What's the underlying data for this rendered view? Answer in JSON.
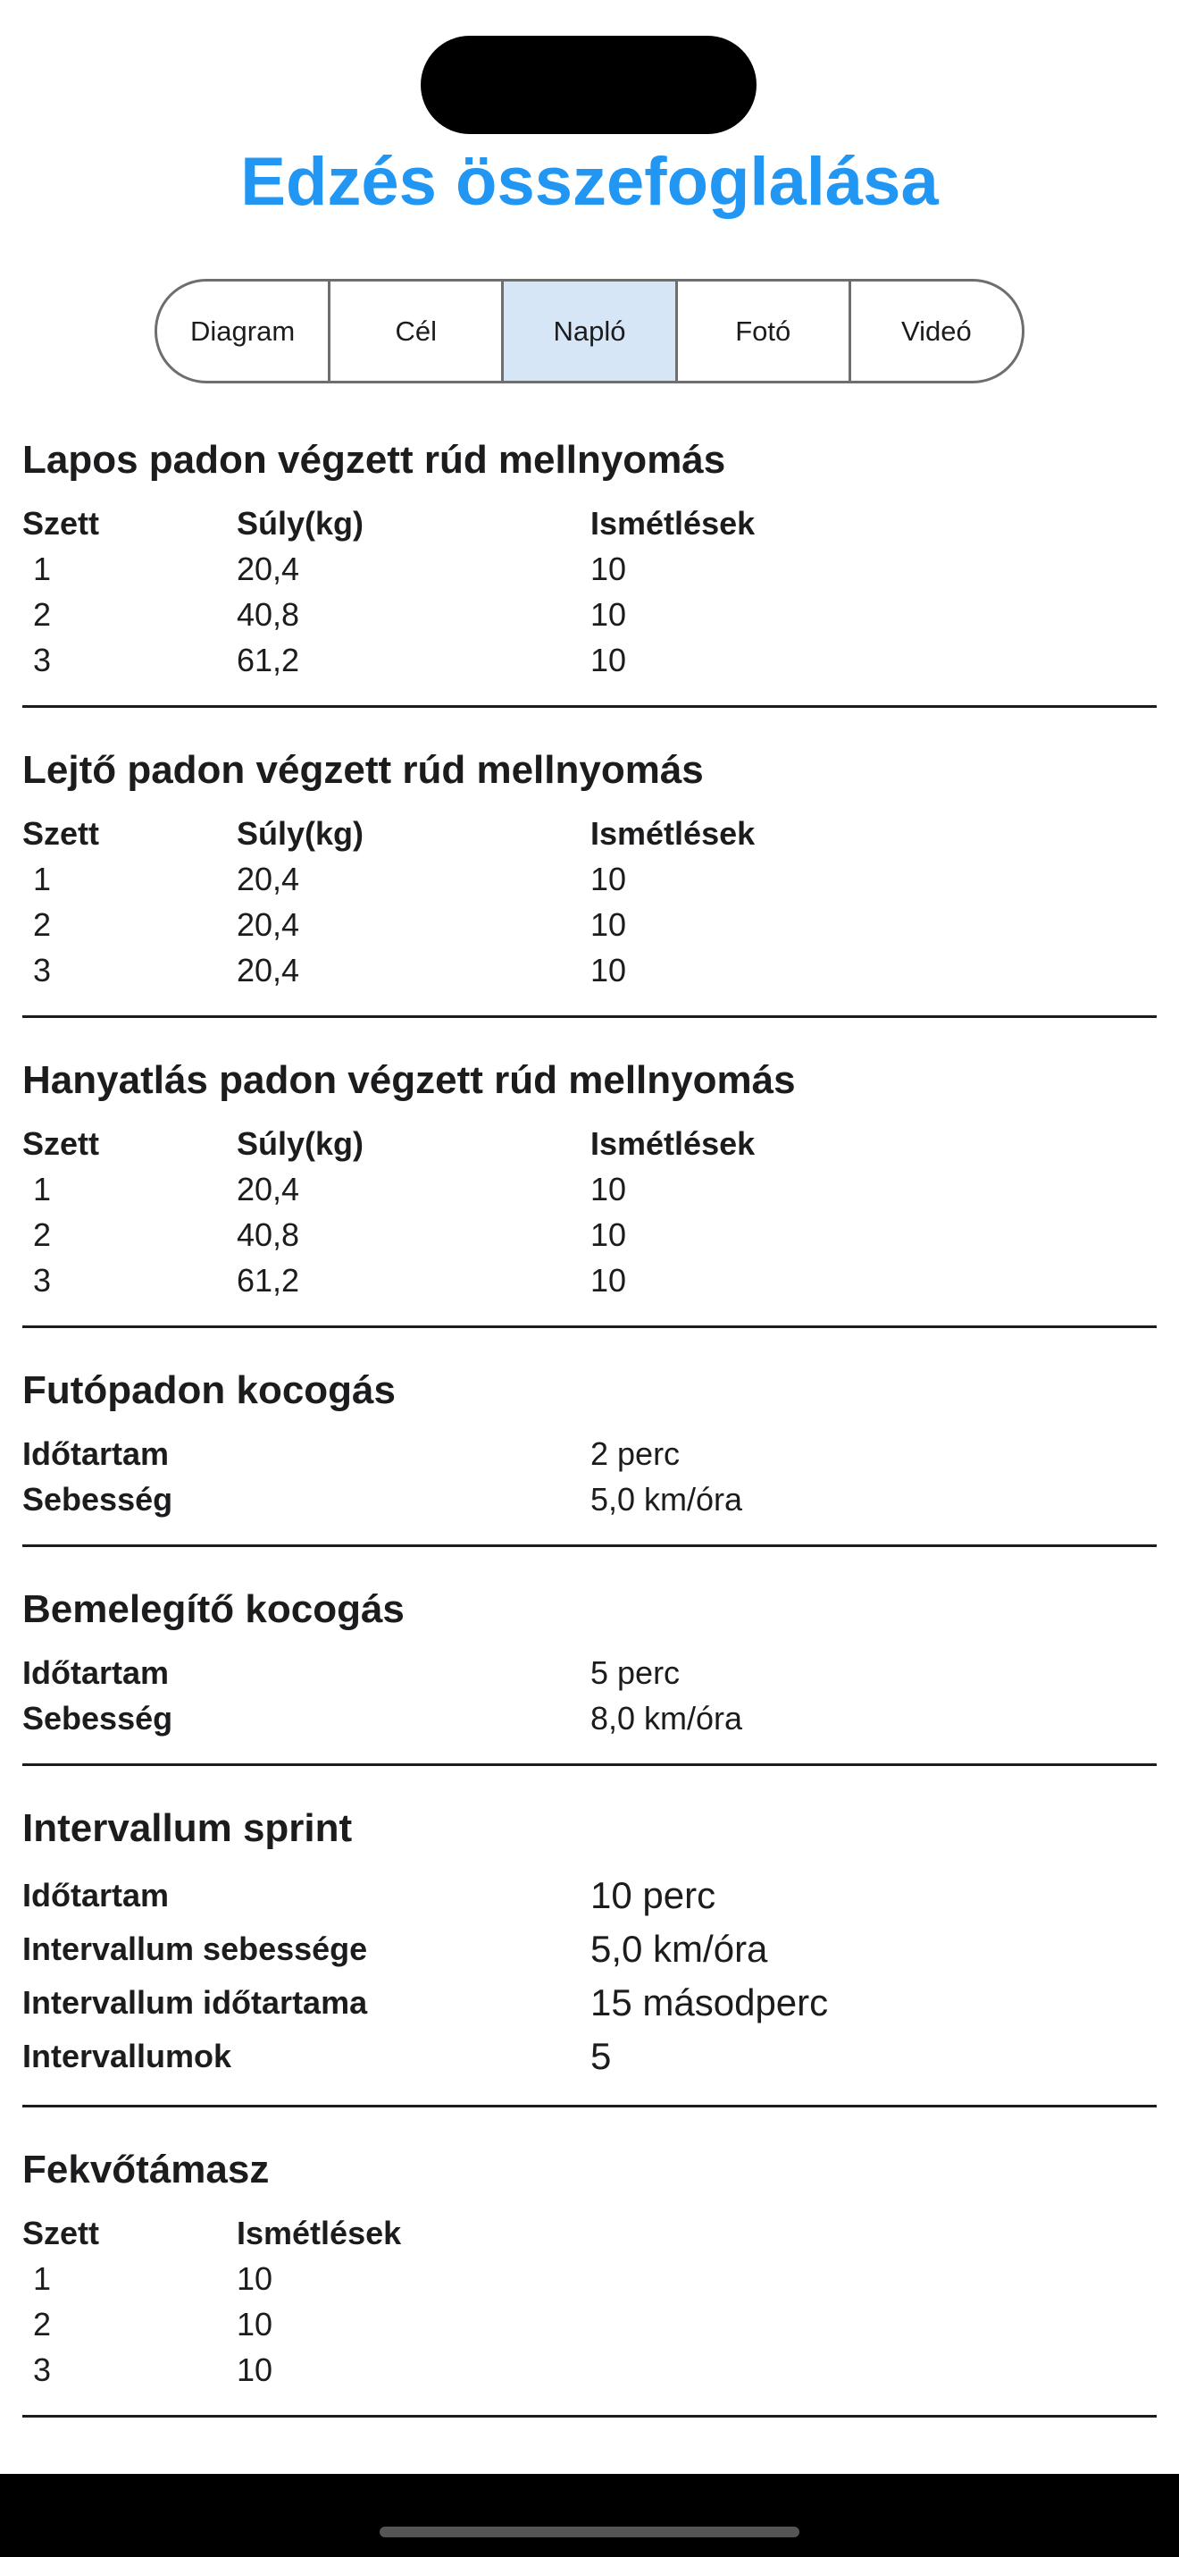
{
  "header": {
    "title": "Edzés összefoglalása"
  },
  "tabs": [
    "Diagram",
    "Cél",
    "Napló",
    "Fotó",
    "Videó"
  ],
  "selected_tab": 2,
  "sections": [
    {
      "title": "Lapos padon végzett rúd mellnyomás",
      "columns": [
        "Szett",
        "Súly(kg)",
        "Ismétlések"
      ],
      "rows": [
        [
          "1",
          "20,4",
          "10"
        ],
        [
          "2",
          "40,8",
          "10"
        ],
        [
          "3",
          "61,2",
          "10"
        ]
      ]
    },
    {
      "title": "Lejtő padon végzett rúd mellnyomás",
      "columns": [
        "Szett",
        "Súly(kg)",
        "Ismétlések"
      ],
      "rows": [
        [
          "1",
          "20,4",
          "10"
        ],
        [
          "2",
          "20,4",
          "10"
        ],
        [
          "3",
          "20,4",
          "10"
        ]
      ]
    },
    {
      "title": "Hanyatlás padon végzett rúd mellnyomás",
      "columns": [
        "Szett",
        "Súly(kg)",
        "Ismétlések"
      ],
      "rows": [
        [
          "1",
          "20,4",
          "10"
        ],
        [
          "2",
          "40,8",
          "10"
        ],
        [
          "3",
          "61,2",
          "10"
        ]
      ]
    },
    {
      "title": "Futópadon kocogás",
      "fields": [
        [
          "Időtartam",
          "2 perc"
        ],
        [
          "Sebesség",
          "5,0 km/óra"
        ]
      ]
    },
    {
      "title": "Bemelegítő kocogás",
      "fields": [
        [
          "Időtartam",
          "5 perc"
        ],
        [
          "Sebesség",
          "8,0 km/óra"
        ]
      ]
    },
    {
      "title": "Intervallum sprint",
      "fields": [
        [
          "Időtartam",
          "10 perc"
        ],
        [
          "Intervallum sebessége",
          "5,0 km/óra"
        ],
        [
          "Intervallum időtartama",
          "15 másodperc"
        ],
        [
          "Intervallumok",
          "5"
        ]
      ]
    },
    {
      "title": "Fekvőtámasz",
      "columns": [
        "Szett",
        "Ismétlések"
      ],
      "rows": [
        [
          "1",
          "10"
        ],
        [
          "2",
          "10"
        ],
        [
          "3",
          "10"
        ]
      ]
    }
  ]
}
